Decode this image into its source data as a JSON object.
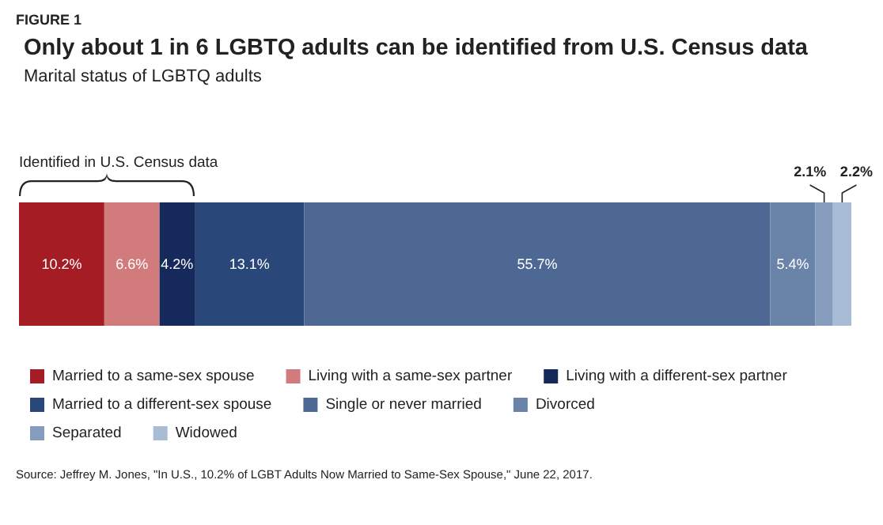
{
  "chart_data": {
    "type": "bar",
    "orientation": "horizontal",
    "stacked": true,
    "title": "Only about 1 in 6 LGBTQ adults can be identified from U.S. Census data",
    "subtitle": "Marital status of LGBTQ adults",
    "categories": [
      null
    ],
    "tick_labels": false,
    "legend": "bottom",
    "annotations": [
      "FIGURE 1",
      "Identified in U.S. Census data",
      "Source: Jeffrey M. Jones, \"In U.S., 10.2% of LGBT Adults Now Married to Same-Sex Spouse,\" June 22, 2017."
    ],
    "series": [
      {
        "name": "Married to a same-sex spouse",
        "color": "#a51c24",
        "values": [
          10.2
        ],
        "value_labels": [
          "10.2%"
        ]
      },
      {
        "name": "Living with a same-sex partner",
        "color": "#d27b7c",
        "values": [
          6.6
        ],
        "value_labels": [
          "6.6%"
        ]
      },
      {
        "name": "Living with a different-sex partner",
        "color": "#15295a",
        "values": [
          4.2
        ],
        "value_labels": [
          "4.2%"
        ]
      },
      {
        "name": "Married to a different-sex spouse",
        "color": "#2a477a",
        "values": [
          13.1
        ],
        "value_labels": [
          "13.1%"
        ]
      },
      {
        "name": "Single or never married",
        "color": "#4d6893",
        "values": [
          55.7
        ],
        "value_labels": [
          "55.7%"
        ]
      },
      {
        "name": "Divorced",
        "color": "#6a83a8",
        "values": [
          5.4
        ],
        "value_labels": [
          "5.4%"
        ]
      },
      {
        "name": "Separated",
        "color": "#869cbd",
        "values": [
          2.1
        ],
        "value_labels": [
          "2.1%"
        ]
      },
      {
        "name": "Widowed",
        "color": "#a9bcd6",
        "values": [
          2.2
        ],
        "value_labels": [
          "2.2%"
        ]
      }
    ]
  }
}
